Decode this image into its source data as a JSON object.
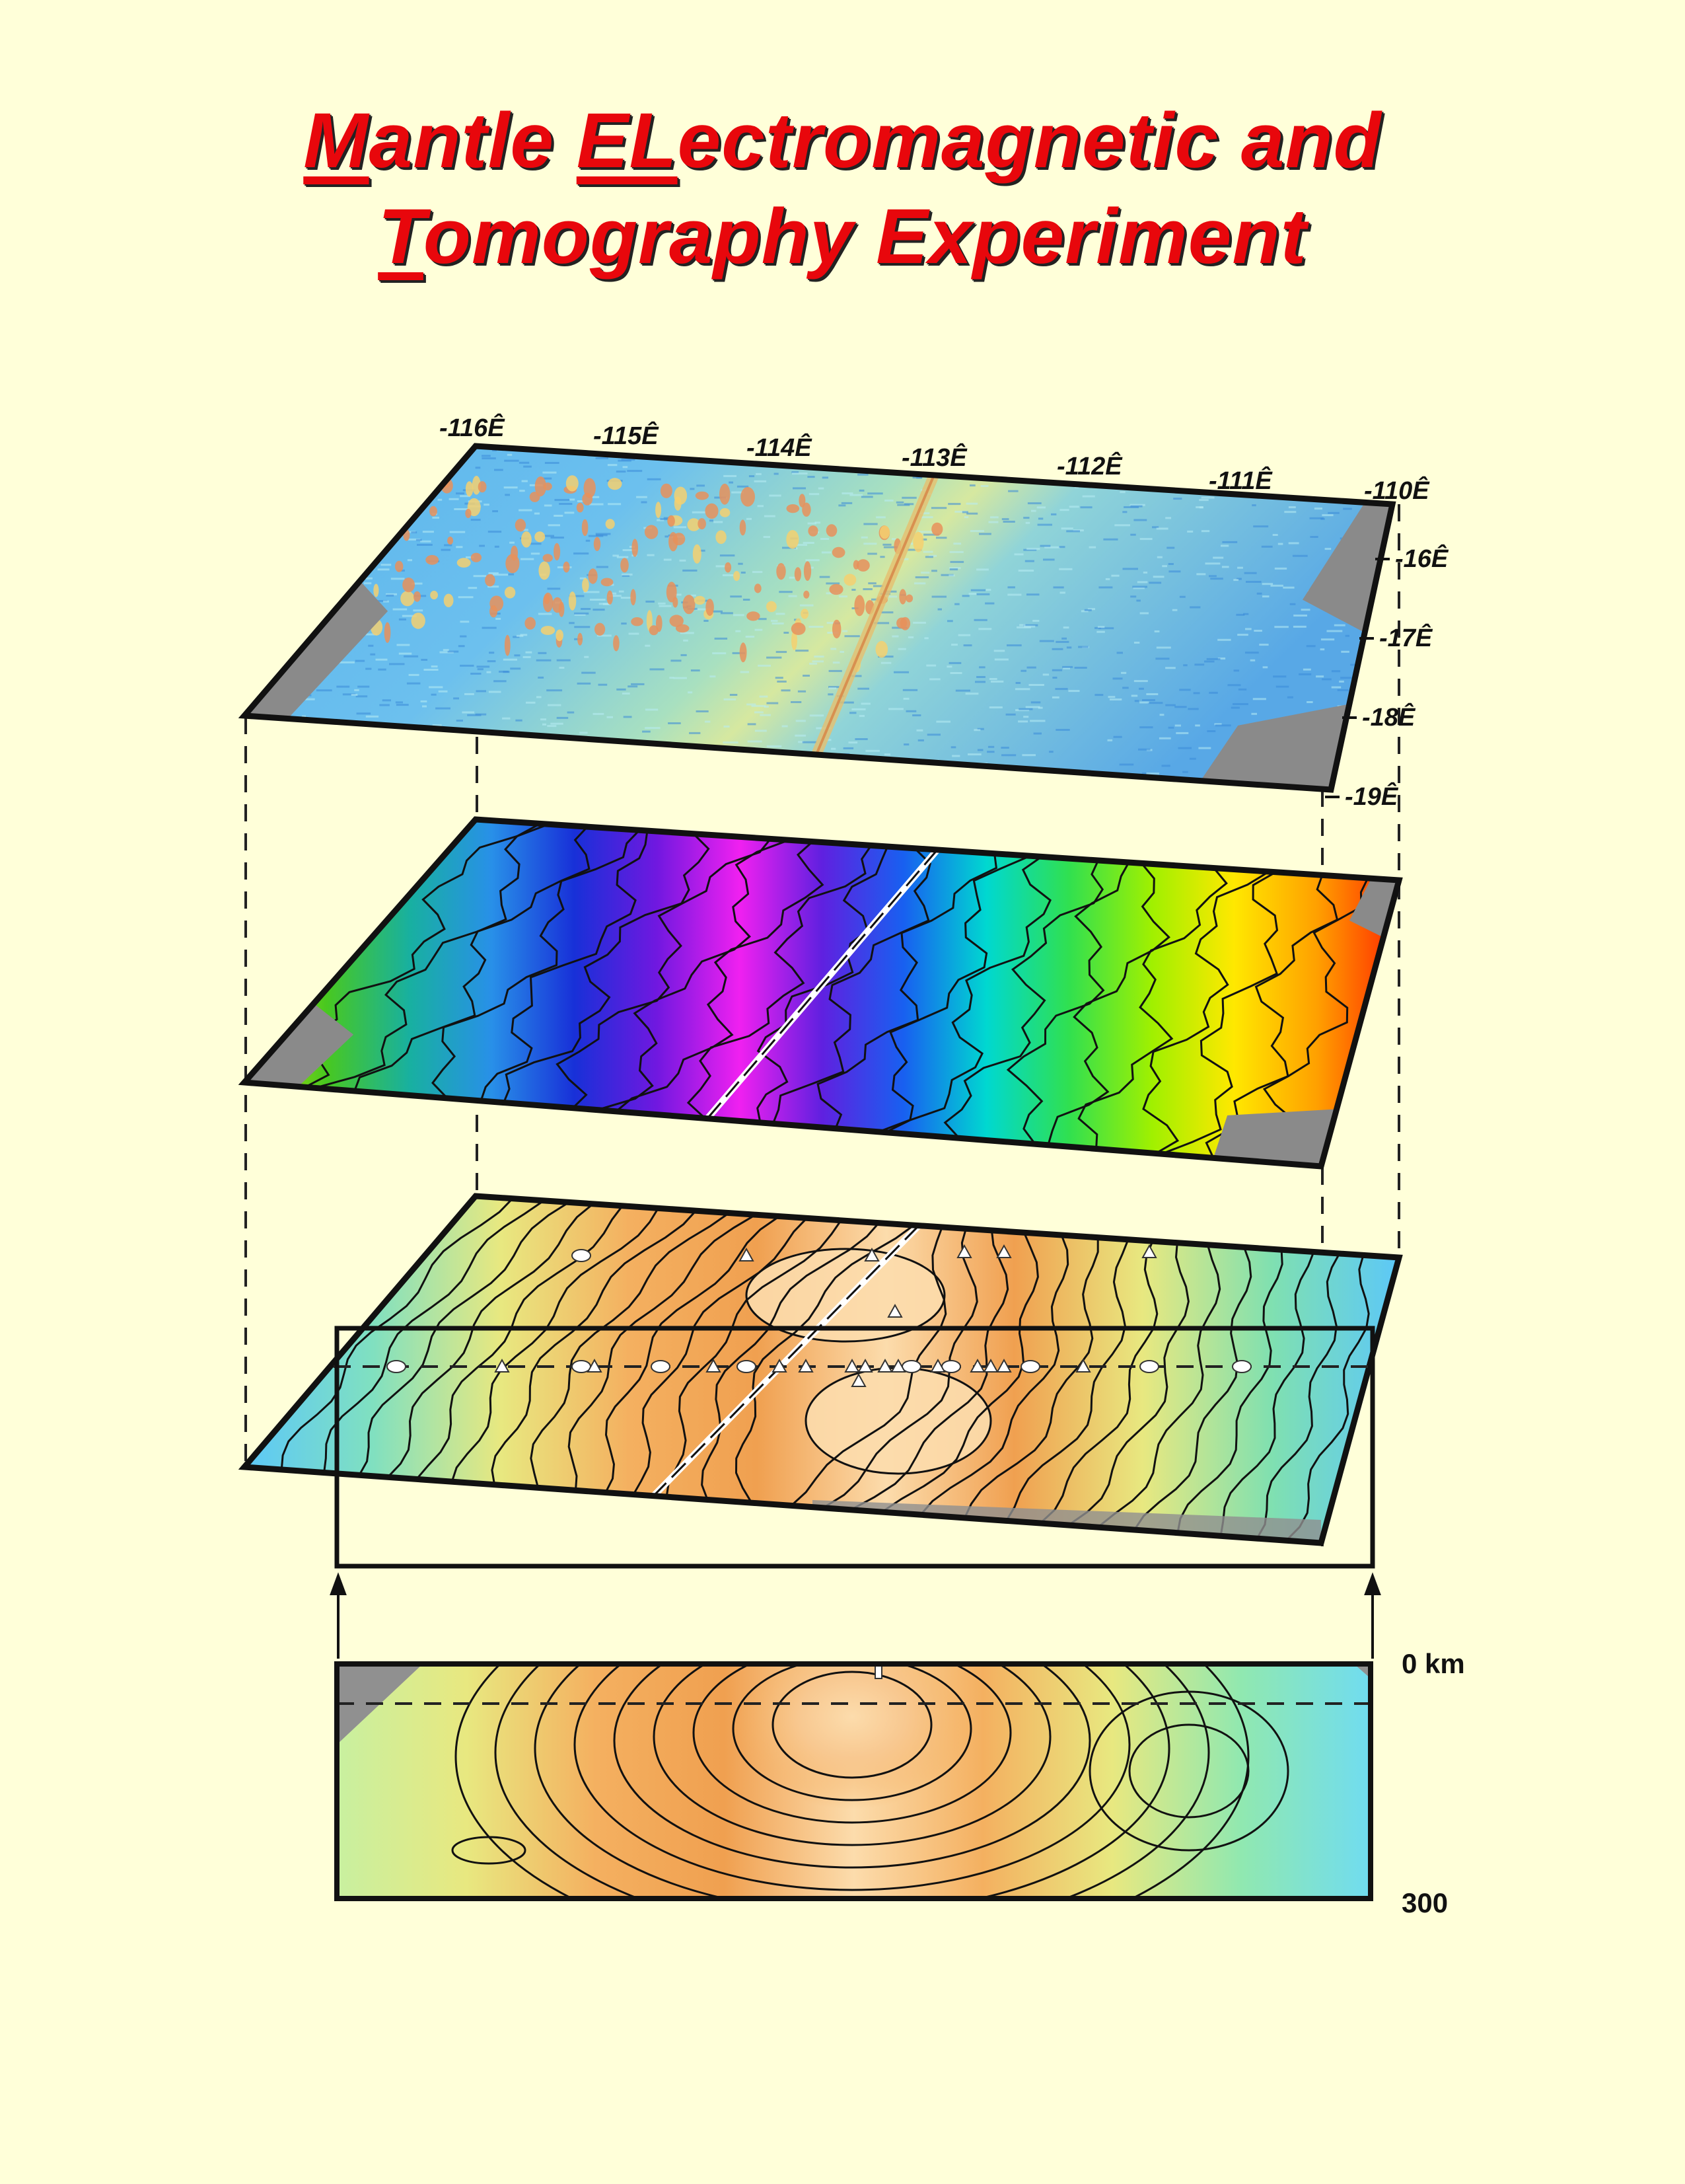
{
  "title": {
    "line1": [
      {
        "text": "M",
        "underline": true
      },
      {
        "text": "antle ",
        "underline": false
      },
      {
        "text": "EL",
        "underline": true
      },
      {
        "text": "ectromagnetic and",
        "underline": false
      }
    ],
    "line2": [
      {
        "text": "T",
        "underline": true
      },
      {
        "text": "omography Experiment",
        "underline": false
      }
    ]
  },
  "longitude_labels": [
    "-116Ê",
    "-115Ê",
    "-114Ê",
    "-113Ê",
    "-112Ê",
    "-111Ê",
    "-110Ê"
  ],
  "latitude_labels": [
    "-16Ê",
    "-17Ê",
    "-18Ê",
    "-19Ê"
  ],
  "depth_labels": {
    "top": "0 km",
    "bottom": "300"
  },
  "colors": {
    "background": "#ffffd9",
    "title": "#e8070c",
    "bathymetry": [
      "#4aa8e8",
      "#7cc8f0",
      "#a8dce0",
      "#e6c87c"
    ],
    "gravity_rainbow": [
      "#c8e000",
      "#48c820",
      "#18b0a0",
      "#2890e8",
      "#1830d8",
      "#7018e0",
      "#f020f0",
      "#6020e0",
      "#1860f0",
      "#00d8d0",
      "#30e050",
      "#a0f000",
      "#ffe800",
      "#ffa000",
      "#ff2800"
    ],
    "tomography": [
      "#5cc8f8",
      "#80e0c0",
      "#e8e880",
      "#f4b060",
      "#f0a050",
      "#fcdcac",
      "#f0a050",
      "#e8e880",
      "#80e0b0",
      "#5cc8f8"
    ]
  }
}
